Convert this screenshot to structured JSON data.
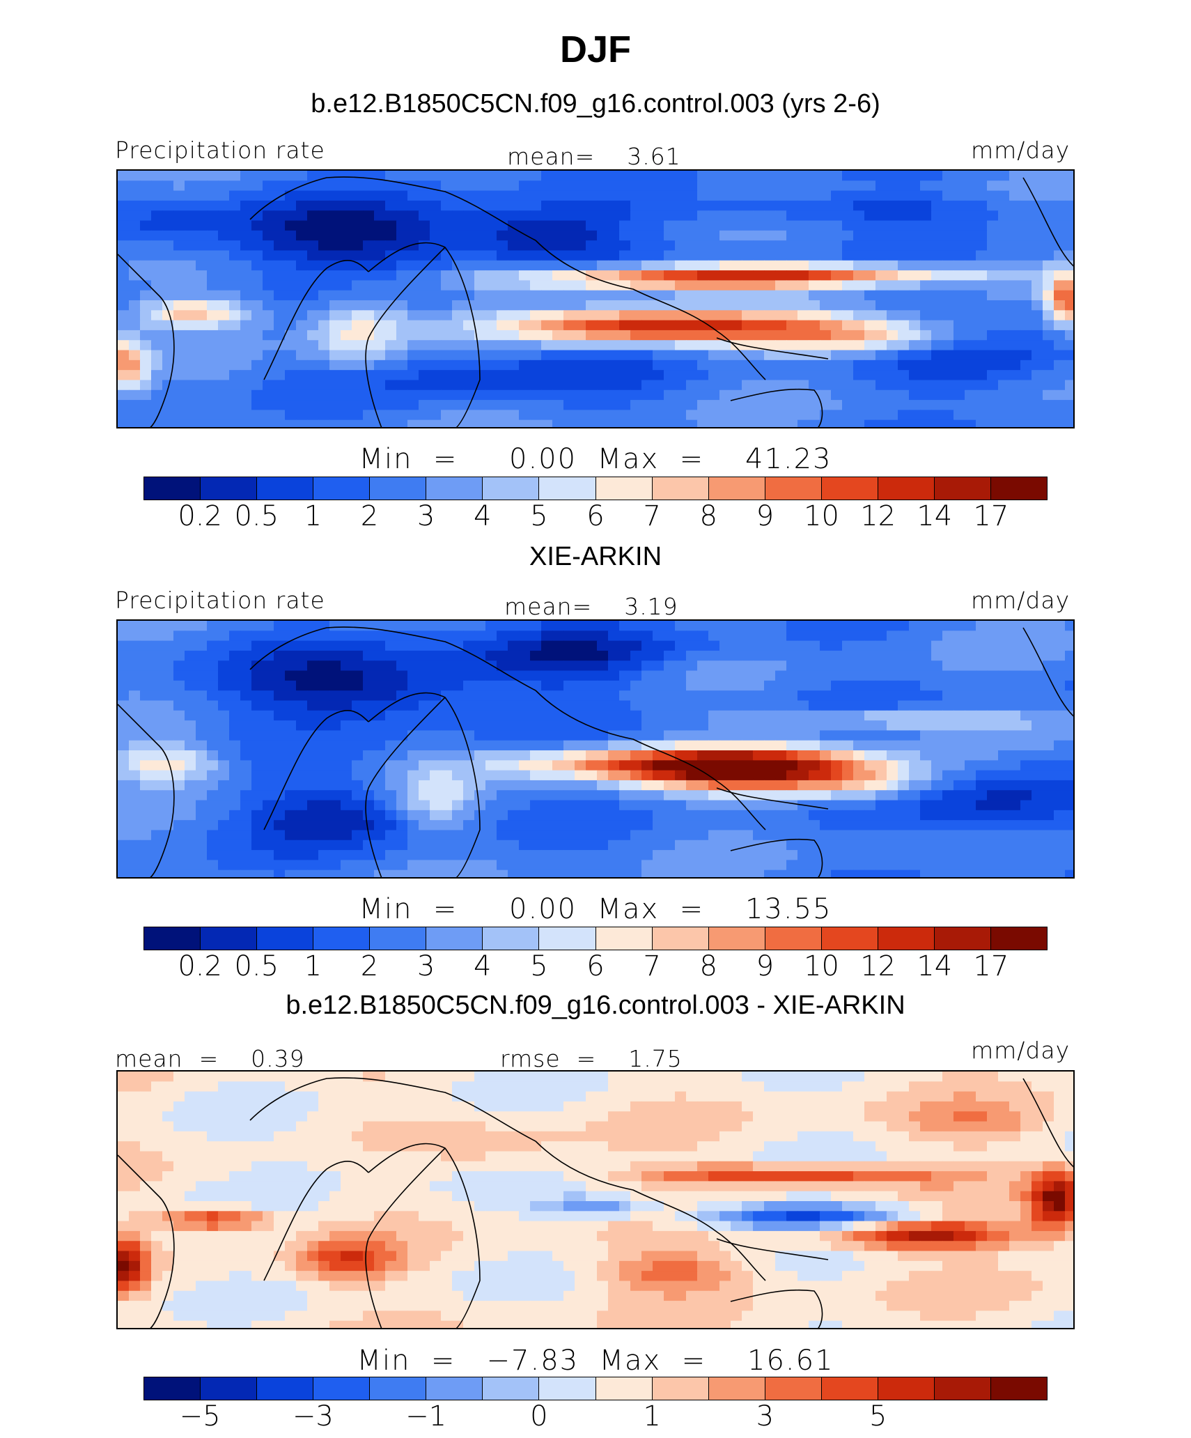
{
  "title": "DJF",
  "colors": [
    "#00127a",
    "#0328b4",
    "#0a43dc",
    "#1f5ff0",
    "#3f7cf2",
    "#6e9cf5",
    "#a3c2f8",
    "#d3e3fb",
    "#fde9d8",
    "#fcc6aa",
    "#f79a72",
    "#f06d41",
    "#e4471f",
    "#cc2a0c",
    "#a81a06",
    "#7a0a00"
  ],
  "panels": [
    {
      "subtitle": "b.e12.B1850C5CN.f09_g16.control.003 (yrs 2-6)",
      "left_label": "Precipitation rate",
      "center_label": "mean=    3.61",
      "right_label": "mm/day",
      "minmax": "Min  =     0.00  Max  =    41.23",
      "ticks": [
        "0.2",
        "0.5",
        "1",
        "2",
        "3",
        "4",
        "5",
        "6",
        "7",
        "8",
        "9",
        "10",
        "12",
        "14",
        "17"
      ],
      "field_mean_level": 4
    },
    {
      "subtitle": "XIE-ARKIN",
      "left_label": "Precipitation rate",
      "center_label": "mean=    3.19",
      "right_label": "mm/day",
      "minmax": "Min  =     0.00  Max  =    13.55",
      "ticks": [
        "0.2",
        "0.5",
        "1",
        "2",
        "3",
        "4",
        "5",
        "6",
        "7",
        "8",
        "9",
        "10",
        "12",
        "14",
        "17"
      ],
      "field_mean_level": 4
    },
    {
      "subtitle": "b.e12.B1850C5CN.f09_g16.control.003 - XIE-ARKIN",
      "left_label": "mean  =    0.39",
      "center_label": "rmse  =    1.75",
      "right_label": "mm/day",
      "minmax": "Min  =   −7.83  Max  =    16.61",
      "ticks": [
        "−5",
        "",
        "−3",
        "",
        "−1",
        "",
        "0",
        "",
        "1",
        "",
        "3",
        "",
        "5",
        "",
        ""
      ],
      "field_mean_level": 8
    }
  ]
}
